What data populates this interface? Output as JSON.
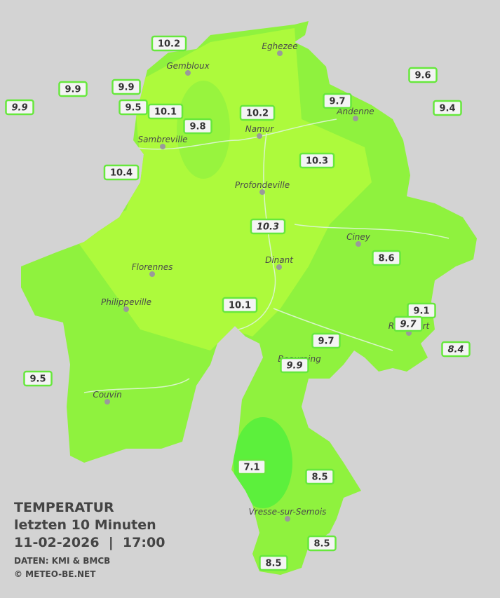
{
  "title": {
    "line1": "TEMPERATUR",
    "line2": "letzten 10 Minuten",
    "line3": "11-02-2026  |  17:00",
    "source": "DATEN: KMI & BMCB",
    "copyright": "© METEO-BE.NET"
  },
  "cities": [
    "Eghezee",
    "Gembloux",
    "Andenne",
    "Namur",
    "Sambreville",
    "Profondeville",
    "Ciney",
    "Dinant",
    "Florennes",
    "Philippeville",
    "Rochefort",
    "Beauraing",
    "Couvin",
    "Vresse-sur-Semois"
  ],
  "stations": [
    {
      "value": 10.2,
      "italic": false
    },
    {
      "value": 9.9,
      "italic": false
    },
    {
      "value": 9.9,
      "italic": false
    },
    {
      "value": 9.5,
      "italic": false
    },
    {
      "value": 10.1,
      "italic": false
    },
    {
      "value": 9.8,
      "italic": false
    },
    {
      "value": 10.2,
      "italic": false
    },
    {
      "value": 9.7,
      "italic": false
    },
    {
      "value": 9.6,
      "italic": false
    },
    {
      "value": 9.4,
      "italic": false
    },
    {
      "value": 10.4,
      "italic": false
    },
    {
      "value": 10.3,
      "italic": false
    },
    {
      "value": 10.3,
      "italic": true
    },
    {
      "value": 8.6,
      "italic": false
    },
    {
      "value": 10.1,
      "italic": false
    },
    {
      "value": 9.1,
      "italic": false
    },
    {
      "value": 9.7,
      "italic": true
    },
    {
      "value": 9.7,
      "italic": false
    },
    {
      "value": 8.4,
      "italic": true
    },
    {
      "value": 9.9,
      "italic": true
    },
    {
      "value": 9.5,
      "italic": false
    },
    {
      "value": 7.1,
      "italic": false
    },
    {
      "value": 8.5,
      "italic": false
    },
    {
      "value": 8.5,
      "italic": false
    },
    {
      "value": 8.5,
      "italic": false
    },
    {
      "value": 9.9,
      "italic": true
    }
  ]
}
